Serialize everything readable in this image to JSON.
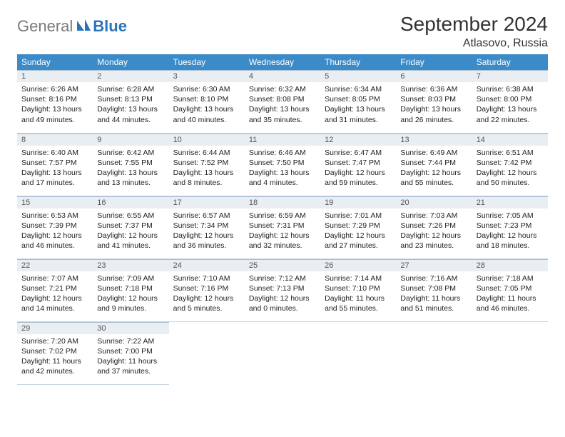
{
  "logo": {
    "part1": "General",
    "part2": "Blue"
  },
  "title": "September 2024",
  "location": "Atlasovo, Russia",
  "colors": {
    "header_bg": "#3b8bc9",
    "daynum_bg": "#e9eef3",
    "border": "#a8bcd0",
    "logo_gray": "#7a7a7a",
    "logo_blue": "#2a74b8"
  },
  "weekdays": [
    "Sunday",
    "Monday",
    "Tuesday",
    "Wednesday",
    "Thursday",
    "Friday",
    "Saturday"
  ],
  "weeks": [
    [
      {
        "n": "1",
        "sr": "6:26 AM",
        "ss": "8:16 PM",
        "dl": "13 hours and 49 minutes."
      },
      {
        "n": "2",
        "sr": "6:28 AM",
        "ss": "8:13 PM",
        "dl": "13 hours and 44 minutes."
      },
      {
        "n": "3",
        "sr": "6:30 AM",
        "ss": "8:10 PM",
        "dl": "13 hours and 40 minutes."
      },
      {
        "n": "4",
        "sr": "6:32 AM",
        "ss": "8:08 PM",
        "dl": "13 hours and 35 minutes."
      },
      {
        "n": "5",
        "sr": "6:34 AM",
        "ss": "8:05 PM",
        "dl": "13 hours and 31 minutes."
      },
      {
        "n": "6",
        "sr": "6:36 AM",
        "ss": "8:03 PM",
        "dl": "13 hours and 26 minutes."
      },
      {
        "n": "7",
        "sr": "6:38 AM",
        "ss": "8:00 PM",
        "dl": "13 hours and 22 minutes."
      }
    ],
    [
      {
        "n": "8",
        "sr": "6:40 AM",
        "ss": "7:57 PM",
        "dl": "13 hours and 17 minutes."
      },
      {
        "n": "9",
        "sr": "6:42 AM",
        "ss": "7:55 PM",
        "dl": "13 hours and 13 minutes."
      },
      {
        "n": "10",
        "sr": "6:44 AM",
        "ss": "7:52 PM",
        "dl": "13 hours and 8 minutes."
      },
      {
        "n": "11",
        "sr": "6:46 AM",
        "ss": "7:50 PM",
        "dl": "13 hours and 4 minutes."
      },
      {
        "n": "12",
        "sr": "6:47 AM",
        "ss": "7:47 PM",
        "dl": "12 hours and 59 minutes."
      },
      {
        "n": "13",
        "sr": "6:49 AM",
        "ss": "7:44 PM",
        "dl": "12 hours and 55 minutes."
      },
      {
        "n": "14",
        "sr": "6:51 AM",
        "ss": "7:42 PM",
        "dl": "12 hours and 50 minutes."
      }
    ],
    [
      {
        "n": "15",
        "sr": "6:53 AM",
        "ss": "7:39 PM",
        "dl": "12 hours and 46 minutes."
      },
      {
        "n": "16",
        "sr": "6:55 AM",
        "ss": "7:37 PM",
        "dl": "12 hours and 41 minutes."
      },
      {
        "n": "17",
        "sr": "6:57 AM",
        "ss": "7:34 PM",
        "dl": "12 hours and 36 minutes."
      },
      {
        "n": "18",
        "sr": "6:59 AM",
        "ss": "7:31 PM",
        "dl": "12 hours and 32 minutes."
      },
      {
        "n": "19",
        "sr": "7:01 AM",
        "ss": "7:29 PM",
        "dl": "12 hours and 27 minutes."
      },
      {
        "n": "20",
        "sr": "7:03 AM",
        "ss": "7:26 PM",
        "dl": "12 hours and 23 minutes."
      },
      {
        "n": "21",
        "sr": "7:05 AM",
        "ss": "7:23 PM",
        "dl": "12 hours and 18 minutes."
      }
    ],
    [
      {
        "n": "22",
        "sr": "7:07 AM",
        "ss": "7:21 PM",
        "dl": "12 hours and 14 minutes."
      },
      {
        "n": "23",
        "sr": "7:09 AM",
        "ss": "7:18 PM",
        "dl": "12 hours and 9 minutes."
      },
      {
        "n": "24",
        "sr": "7:10 AM",
        "ss": "7:16 PM",
        "dl": "12 hours and 5 minutes."
      },
      {
        "n": "25",
        "sr": "7:12 AM",
        "ss": "7:13 PM",
        "dl": "12 hours and 0 minutes."
      },
      {
        "n": "26",
        "sr": "7:14 AM",
        "ss": "7:10 PM",
        "dl": "11 hours and 55 minutes."
      },
      {
        "n": "27",
        "sr": "7:16 AM",
        "ss": "7:08 PM",
        "dl": "11 hours and 51 minutes."
      },
      {
        "n": "28",
        "sr": "7:18 AM",
        "ss": "7:05 PM",
        "dl": "11 hours and 46 minutes."
      }
    ],
    [
      {
        "n": "29",
        "sr": "7:20 AM",
        "ss": "7:02 PM",
        "dl": "11 hours and 42 minutes."
      },
      {
        "n": "30",
        "sr": "7:22 AM",
        "ss": "7:00 PM",
        "dl": "11 hours and 37 minutes."
      },
      null,
      null,
      null,
      null,
      null
    ]
  ],
  "labels": {
    "sunrise": "Sunrise:",
    "sunset": "Sunset:",
    "daylight": "Daylight:"
  }
}
